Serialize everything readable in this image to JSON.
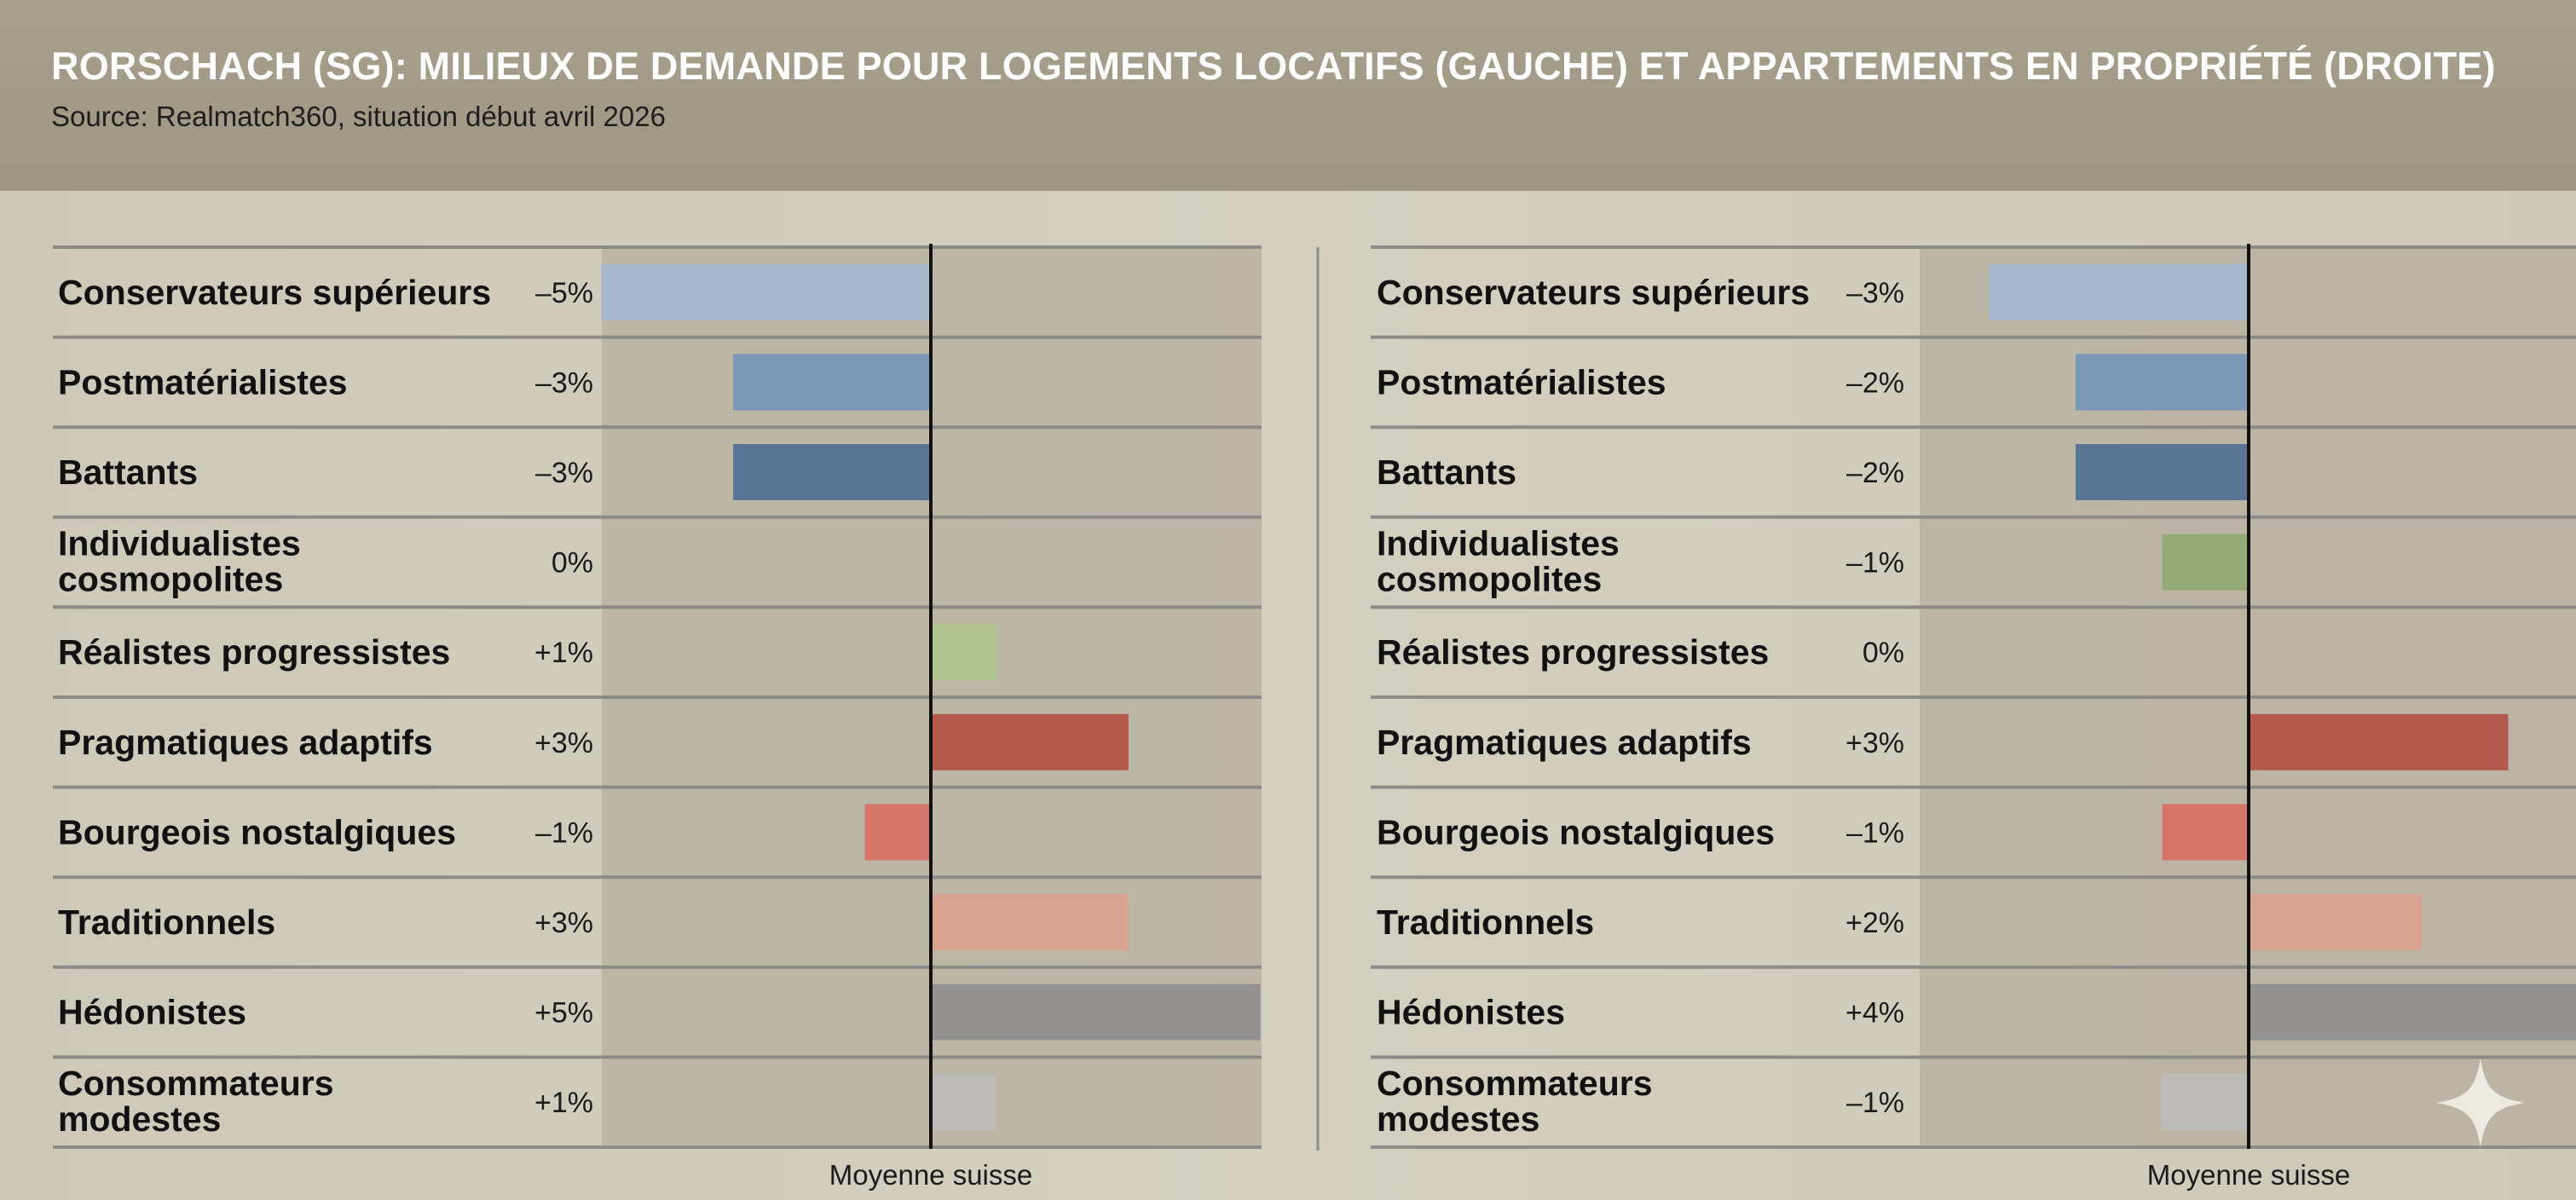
{
  "title": "RORSCHACH (SG): MILIEUX DE DEMANDE POUR LOGEMENTS LOCATIFS (GAUCHE) ET APPARTEMENTS EN PROPRIÉTÉ (DROITE)",
  "subtitle": "Source: Realmatch360, situation début avril 2026",
  "chart_data": [
    {
      "type": "bar",
      "orientation": "horizontal",
      "side": "left",
      "reference_label": "Moyenne suisse",
      "categories": [
        [
          "Conservateurs supérieurs"
        ],
        [
          "Postmatérialistes"
        ],
        [
          "Battants"
        ],
        [
          "Individualistes",
          "cosmopolites"
        ],
        [
          "Réalistes progressistes"
        ],
        [
          "Pragmatiques adaptifs"
        ],
        [
          "Bourgeois nostalgiques"
        ],
        [
          "Traditionnels"
        ],
        [
          "Hédonistes"
        ],
        [
          "Consommateurs",
          "modestes"
        ]
      ],
      "values": [
        -5,
        -3,
        -3,
        0,
        1,
        3,
        -1,
        3,
        5,
        1
      ],
      "value_labels": [
        "–5%",
        "–3%",
        "–3%",
        "0%",
        "+1%",
        "+3%",
        "–1%",
        "+3%",
        "+5%",
        "+1%"
      ],
      "xlim": [
        -5,
        5
      ],
      "unit": "%"
    },
    {
      "type": "bar",
      "orientation": "horizontal",
      "side": "right",
      "reference_label": "Moyenne suisse",
      "categories": [
        [
          "Conservateurs supérieurs"
        ],
        [
          "Postmatérialistes"
        ],
        [
          "Battants"
        ],
        [
          "Individualistes",
          "cosmopolites"
        ],
        [
          "Réalistes progressistes"
        ],
        [
          "Pragmatiques adaptifs"
        ],
        [
          "Bourgeois nostalgiques"
        ],
        [
          "Traditionnels"
        ],
        [
          "Hédonistes"
        ],
        [
          "Consommateurs",
          "modestes"
        ]
      ],
      "values": [
        -3,
        -2,
        -2,
        -1,
        0,
        3,
        -1,
        2,
        4,
        -1
      ],
      "value_labels": [
        "–3%",
        "–2%",
        "–2%",
        "–1%",
        "0%",
        "+3%",
        "–1%",
        "+2%",
        "+4%",
        "–1%"
      ],
      "xlim": [
        -4,
        4
      ],
      "unit": "%"
    }
  ],
  "colors": {
    "category_bars": [
      "#a7b8cc",
      "#7c97b8",
      "#5a7596",
      "#93aa74",
      "#afc48e",
      "#b45a4c",
      "#d6766a",
      "#d9a391",
      "#939190",
      "#bcbbb7"
    ],
    "plot_background": "#b8b1a1",
    "header_background": "#a39c88",
    "row_divider": "#8d8b88",
    "reference_line": "#111111"
  }
}
